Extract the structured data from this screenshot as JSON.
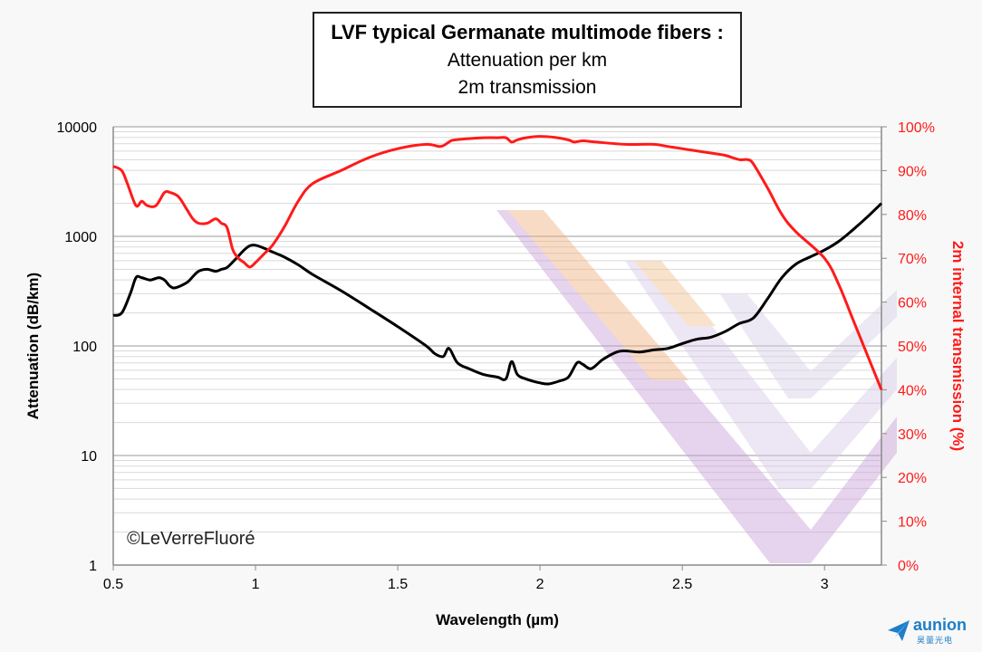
{
  "title": {
    "line1": "LVF typical Germanate multimode fibers :",
    "line2": "Attenuation per km",
    "line3": "2m transmission"
  },
  "watermark": "©LeVerreFluoré",
  "brand": {
    "name": "aunion",
    "sub": "昊量光电",
    "color": "#1e7ec8"
  },
  "chart_data": {
    "type": "line",
    "xlabel": "Wavelength (µm)",
    "ylabel_left": "Attenuation (dB/km)",
    "ylabel_right": "2m internal transmission (%)",
    "xlim": [
      0.5,
      3.2
    ],
    "x_ticks": [
      0.5,
      1,
      1.5,
      2,
      2.5,
      3
    ],
    "x_tick_labels": [
      "0.5",
      "1",
      "1.5",
      "2",
      "2.5",
      "3"
    ],
    "y_left_scale": "log",
    "y_left_lim": [
      1,
      10000
    ],
    "y_left_ticks": [
      1,
      10,
      100,
      1000,
      10000
    ],
    "y_left_tick_labels": [
      "1",
      "10",
      "100",
      "1000",
      "10000"
    ],
    "y_right_lim": [
      0,
      100
    ],
    "y_right_ticks": [
      0,
      10,
      20,
      30,
      40,
      50,
      60,
      70,
      80,
      90,
      100
    ],
    "y_right_tick_labels": [
      "0%",
      "10%",
      "20%",
      "30%",
      "40%",
      "50%",
      "60%",
      "70%",
      "80%",
      "90%",
      "100%"
    ],
    "grid": true,
    "colors": {
      "attenuation": "#000000",
      "transmission": "#ff1a1a",
      "right_axis": "#ff1a1a"
    },
    "series": [
      {
        "axis": "left",
        "x": [
          0.5,
          0.53,
          0.56,
          0.58,
          0.6,
          0.63,
          0.66,
          0.68,
          0.7,
          0.72,
          0.76,
          0.78,
          0.8,
          0.83,
          0.86,
          0.88,
          0.9,
          0.93,
          0.96,
          0.98,
          1.0,
          1.03,
          1.06,
          1.1,
          1.15,
          1.2,
          1.3,
          1.4,
          1.5,
          1.6,
          1.63,
          1.66,
          1.68,
          1.71,
          1.75,
          1.8,
          1.85,
          1.88,
          1.9,
          1.92,
          1.95,
          2.0,
          2.03,
          2.07,
          2.1,
          2.13,
          2.15,
          2.18,
          2.22,
          2.27,
          2.3,
          2.35,
          2.4,
          2.45,
          2.5,
          2.55,
          2.6,
          2.65,
          2.7,
          2.75,
          2.8,
          2.85,
          2.9,
          2.95,
          3.0,
          3.05,
          3.1,
          3.15,
          3.2
        ],
        "y": [
          190,
          200,
          300,
          420,
          420,
          400,
          420,
          400,
          350,
          340,
          380,
          430,
          480,
          500,
          480,
          500,
          520,
          620,
          750,
          820,
          830,
          780,
          720,
          650,
          550,
          450,
          320,
          220,
          150,
          100,
          85,
          80,
          95,
          70,
          62,
          55,
          52,
          50,
          72,
          55,
          50,
          46,
          45,
          48,
          52,
          70,
          68,
          62,
          75,
          88,
          90,
          88,
          92,
          95,
          105,
          115,
          120,
          135,
          160,
          180,
          270,
          420,
          560,
          650,
          750,
          900,
          1150,
          1500,
          2000
        ]
      },
      {
        "axis": "right",
        "x": [
          0.5,
          0.53,
          0.55,
          0.58,
          0.6,
          0.62,
          0.65,
          0.68,
          0.7,
          0.73,
          0.76,
          0.78,
          0.8,
          0.83,
          0.86,
          0.88,
          0.9,
          0.92,
          0.94,
          0.96,
          0.98,
          1.0,
          1.03,
          1.06,
          1.1,
          1.15,
          1.2,
          1.3,
          1.4,
          1.5,
          1.6,
          1.65,
          1.68,
          1.7,
          1.8,
          1.85,
          1.88,
          1.9,
          1.92,
          1.95,
          2.0,
          2.05,
          2.1,
          2.12,
          2.15,
          2.2,
          2.3,
          2.4,
          2.45,
          2.5,
          2.6,
          2.65,
          2.7,
          2.73,
          2.75,
          2.8,
          2.85,
          2.9,
          3.0,
          3.05,
          3.1,
          3.15,
          3.2
        ],
        "y": [
          91,
          90,
          87,
          82,
          83,
          82,
          82,
          85,
          85,
          84,
          81,
          79,
          78,
          78,
          79,
          78,
          77,
          72,
          70,
          69,
          68,
          69,
          71,
          73,
          77,
          83,
          87,
          90,
          93,
          95,
          96,
          95.5,
          96.5,
          97,
          97.5,
          97.5,
          97.5,
          96.5,
          97,
          97.5,
          97.8,
          97.6,
          97,
          96.5,
          96.8,
          96.5,
          96,
          96,
          95.5,
          95,
          94,
          93.5,
          92.5,
          92.5,
          91.5,
          86,
          80,
          76,
          70,
          64,
          56,
          48,
          40
        ]
      }
    ]
  }
}
